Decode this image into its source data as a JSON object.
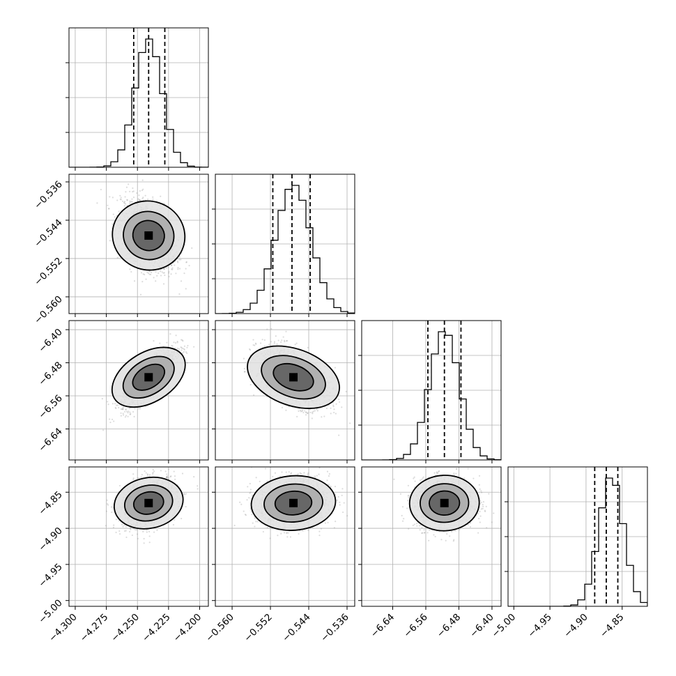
{
  "chart_data": {
    "type": "corner",
    "title": "",
    "parameters": [
      {
        "range": [
          -4.305,
          -4.193
        ],
        "ticks": [
          -4.3,
          -4.275,
          -4.25,
          -4.225,
          -4.2
        ],
        "tick_labels": [
          "−4.300",
          "−4.275",
          "−4.250",
          "−4.225",
          "−4.200"
        ],
        "quantiles": [
          -4.253,
          -4.241,
          -4.228
        ],
        "peak": -4.241,
        "sigma": 0.011
      },
      {
        "range": [
          -0.5635,
          -0.5344
        ],
        "ticks": [
          -0.56,
          -0.552,
          -0.544,
          -0.536
        ],
        "tick_labels": [
          "−0.560",
          "−0.552",
          "−0.544",
          "−0.536"
        ],
        "quantiles": [
          -0.5515,
          -0.5475,
          -0.5437
        ],
        "peak": -0.5472,
        "sigma": 0.0037
      },
      {
        "range": [
          -6.715,
          -6.378
        ],
        "ticks": [
          -6.64,
          -6.56,
          -6.48,
          -6.4
        ],
        "tick_labels": [
          "−6.64",
          "−6.56",
          "−6.48",
          "−6.40"
        ],
        "quantiles": [
          -6.555,
          -6.515,
          -6.475
        ],
        "peak": -6.515,
        "sigma": 0.036
      },
      {
        "range": [
          -5.008,
          -4.815
        ],
        "ticks": [
          -5.0,
          -4.95,
          -4.9,
          -4.85
        ],
        "tick_labels": [
          "−5.00",
          "−4.95",
          "−4.90",
          "−4.85"
        ],
        "quantiles": [
          -4.888,
          -4.872,
          -4.856
        ],
        "peak": -4.865,
        "sigma": 0.017
      }
    ],
    "correlations": {
      "1-0": -0.45,
      "2-0": 0.8,
      "2-1": -0.5,
      "3-0": 0.3,
      "3-1": 0.1,
      "3-2": 0.05
    },
    "grid": true,
    "colors": {
      "line": "#000000",
      "scatter": "#9a9a9a",
      "grid": "#b0b0b0"
    }
  }
}
